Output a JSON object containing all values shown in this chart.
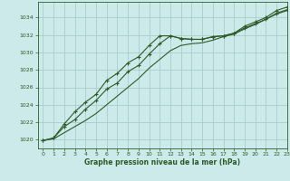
{
  "background_color": "#cceaea",
  "plot_bg_color": "#cceaea",
  "grid_color": "#aacccc",
  "line_color": "#2d5a27",
  "marker_color": "#2d5a27",
  "xlabel": "Graphe pression niveau de la mer (hPa)",
  "xlim": [
    -0.5,
    23
  ],
  "ylim": [
    1019.0,
    1035.8
  ],
  "yticks": [
    1020,
    1022,
    1024,
    1026,
    1028,
    1030,
    1032,
    1034
  ],
  "xticks": [
    0,
    1,
    2,
    3,
    4,
    5,
    6,
    7,
    8,
    9,
    10,
    11,
    12,
    13,
    14,
    15,
    16,
    17,
    18,
    19,
    20,
    21,
    22,
    23
  ],
  "series1_x": [
    0,
    1,
    2,
    3,
    4,
    5,
    6,
    7,
    8,
    9,
    10,
    11,
    12,
    13,
    14,
    15,
    16,
    17,
    18,
    19,
    20,
    21,
    22,
    23
  ],
  "series1_y": [
    1019.9,
    1020.2,
    1021.8,
    1023.2,
    1024.3,
    1025.2,
    1026.8,
    1027.6,
    1028.8,
    1029.5,
    1030.8,
    1031.9,
    1031.9,
    1031.6,
    1031.5,
    1031.5,
    1031.8,
    1031.9,
    1032.2,
    1033.0,
    1033.5,
    1034.0,
    1034.8,
    1035.2
  ],
  "series2_x": [
    0,
    1,
    2,
    3,
    4,
    5,
    6,
    7,
    8,
    9,
    10,
    11,
    12,
    13,
    14,
    15,
    16,
    17,
    18,
    19,
    20,
    21,
    22,
    23
  ],
  "series2_y": [
    1019.9,
    1020.2,
    1021.5,
    1022.3,
    1023.5,
    1024.5,
    1025.8,
    1026.5,
    1027.8,
    1028.5,
    1029.8,
    1031.0,
    1031.9,
    1031.6,
    1031.5,
    1031.5,
    1031.8,
    1031.9,
    1032.2,
    1032.8,
    1033.3,
    1033.8,
    1034.5,
    1034.9
  ],
  "series3_x": [
    0,
    1,
    2,
    3,
    4,
    5,
    6,
    7,
    8,
    9,
    10,
    11,
    12,
    13,
    14,
    15,
    16,
    17,
    18,
    19,
    20,
    21,
    22,
    23
  ],
  "series3_y": [
    1019.9,
    1020.1,
    1020.8,
    1021.5,
    1022.2,
    1023.0,
    1024.0,
    1025.0,
    1026.0,
    1027.0,
    1028.2,
    1029.2,
    1030.2,
    1030.8,
    1031.0,
    1031.1,
    1031.4,
    1031.8,
    1032.1,
    1032.7,
    1033.2,
    1033.8,
    1034.4,
    1034.8
  ]
}
